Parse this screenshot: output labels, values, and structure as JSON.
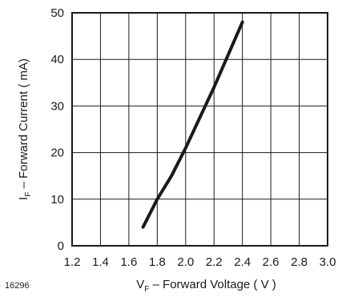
{
  "chart_data": {
    "type": "line",
    "xlabel": {
      "main": "V",
      "sub": "F",
      "rest": " – Forward Voltage ( V )"
    },
    "ylabel": {
      "main": "I",
      "sub": "F",
      "rest": " – Forward Current ( mA)"
    },
    "xlim": [
      1.2,
      3.0
    ],
    "ylim": [
      0,
      50
    ],
    "x_ticks": [
      "1.2",
      "1.4",
      "1.6",
      "1.8",
      "2.0",
      "2.2",
      "2.4",
      "2.6",
      "2.8",
      "3.0"
    ],
    "y_ticks": [
      "0",
      "10",
      "20",
      "30",
      "40",
      "50"
    ],
    "grid": true,
    "series": [
      {
        "x": [
          1.7,
          1.8,
          1.9,
          2.0,
          2.1,
          2.2,
          2.3,
          2.4
        ],
        "y": [
          4,
          10,
          15,
          21,
          27.5,
          34,
          41,
          48
        ]
      }
    ],
    "figure_id": "16296"
  }
}
